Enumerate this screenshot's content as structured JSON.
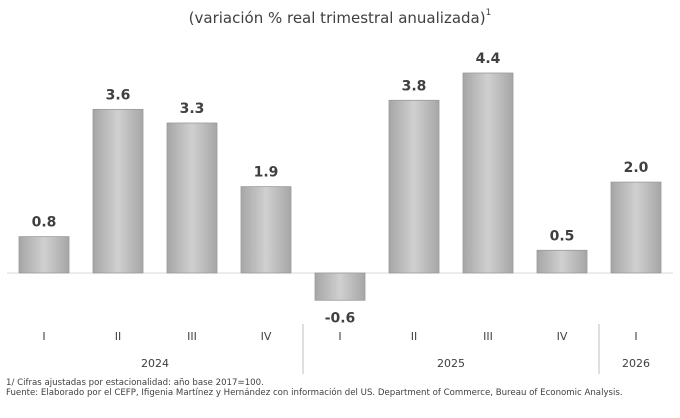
{
  "chart_data": {
    "type": "bar",
    "title": "(variación % real trimestral anualizada)",
    "title_note": "1",
    "groups": [
      {
        "name": "2024",
        "categories": [
          "I",
          "II",
          "III",
          "IV"
        ]
      },
      {
        "name": "2025",
        "categories": [
          "I",
          "II",
          "III",
          "IV"
        ]
      },
      {
        "name": "2026",
        "categories": [
          "I"
        ]
      }
    ],
    "values": [
      0.8,
      3.6,
      3.3,
      1.9,
      -0.6,
      3.8,
      4.4,
      0.5,
      2.0
    ],
    "value_labels": [
      "0.8",
      "3.6",
      "3.3",
      "1.9",
      "-0.6",
      "3.8",
      "4.4",
      "0.5",
      "2.0"
    ],
    "color": "#bfbfbf",
    "notes": [
      "1/ Cifras ajustadas por estacionalidad: año base 2017=100.",
      "Fuente: Elaborado por el CEFP, Ifigenia Martínez y Hernández con información del US. Department of Commerce, Bureau of Economic Analysis."
    ]
  }
}
